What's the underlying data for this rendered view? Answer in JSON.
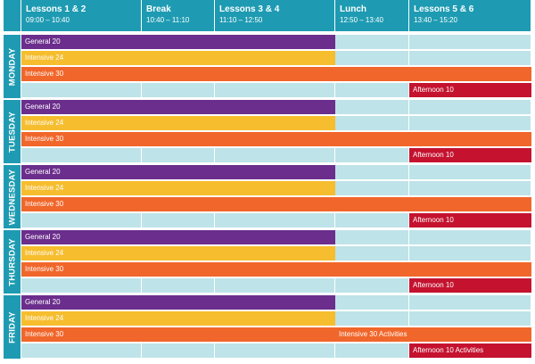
{
  "header": {
    "periods": [
      {
        "title": "Lessons 1 & 2",
        "time": "09:00 – 10:40"
      },
      {
        "title": "Break",
        "time": "10:40 – 11:10"
      },
      {
        "title": "Lessons 3 & 4",
        "time": "11:10 – 12:50"
      },
      {
        "title": "Lunch",
        "time": "12:50 – 13:40"
      },
      {
        "title": "Lessons 5 & 6",
        "time": "13:40 – 15:20"
      }
    ]
  },
  "days": [
    {
      "name": "MONDAY",
      "general": "General 20",
      "intensive24": "Intensive 24",
      "intensive30": "Intensive 30",
      "intensive30_afternoon": "",
      "afternoon": "Afternoon 10"
    },
    {
      "name": "TUESDAY",
      "general": "General 20",
      "intensive24": "Intensive 24",
      "intensive30": "Intensive 30",
      "intensive30_afternoon": "",
      "afternoon": "Afternoon 10"
    },
    {
      "name": "WEDNESDAY",
      "general": "General 20",
      "intensive24": "Intensive 24",
      "intensive30": "Intensive 30",
      "intensive30_afternoon": "",
      "afternoon": "Afternoon 10"
    },
    {
      "name": "THURSDAY",
      "general": "General 20",
      "intensive24": "Intensive 24",
      "intensive30": "Intensive 30",
      "intensive30_afternoon": "",
      "afternoon": "Afternoon 10"
    },
    {
      "name": "FRIDAY",
      "general": "General 20",
      "intensive24": "Intensive 24",
      "intensive30": "Intensive 30",
      "intensive30_afternoon": "Intensive 30 Activities",
      "afternoon": "Afternoon 10 Activities"
    }
  ],
  "colors": {
    "header": "#1e9bb2",
    "general": "#6b2e8c",
    "intensive24": "#f6bd2e",
    "intensive30": "#f1662a",
    "afternoon": "#c4122f",
    "empty_cell": "#bee3e8"
  }
}
